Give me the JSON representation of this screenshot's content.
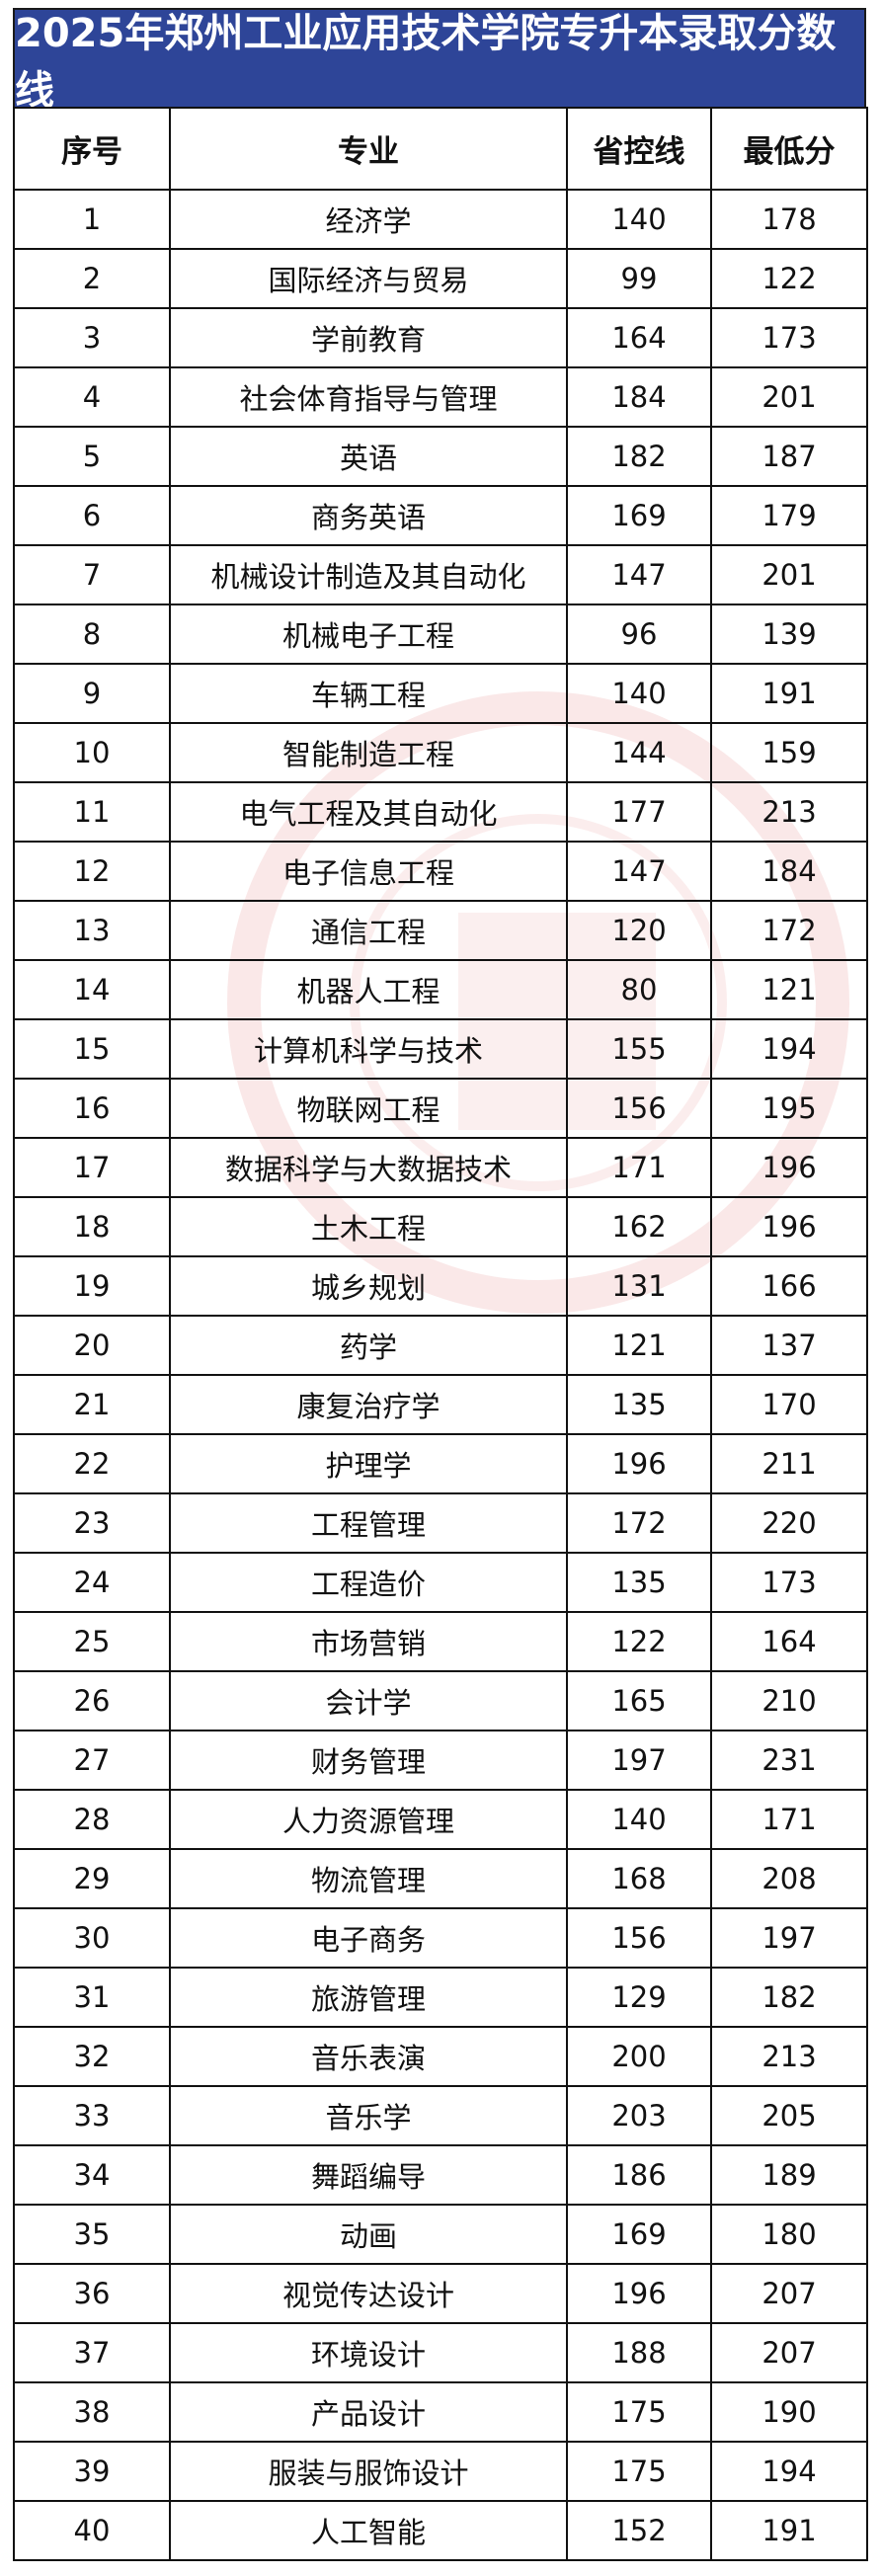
{
  "title": "2025年郑州工业应用技术学院专升本录取分数线",
  "colors": {
    "title_bg": "#2E4598",
    "watermark": "#D65050"
  },
  "headers": [
    "序号",
    "专业",
    "省控线",
    "最低分"
  ],
  "rows": [
    [
      "1",
      "经济学",
      "140",
      "178"
    ],
    [
      "2",
      "国际经济与贸易",
      "99",
      "122"
    ],
    [
      "3",
      "学前教育",
      "164",
      "173"
    ],
    [
      "4",
      "社会体育指导与管理",
      "184",
      "201"
    ],
    [
      "5",
      "英语",
      "182",
      "187"
    ],
    [
      "6",
      "商务英语",
      "169",
      "179"
    ],
    [
      "7",
      "机械设计制造及其自动化",
      "147",
      "201"
    ],
    [
      "8",
      "机械电子工程",
      "96",
      "139"
    ],
    [
      "9",
      "车辆工程",
      "140",
      "191"
    ],
    [
      "10",
      "智能制造工程",
      "144",
      "159"
    ],
    [
      "11",
      "电气工程及其自动化",
      "177",
      "213"
    ],
    [
      "12",
      "电子信息工程",
      "147",
      "184"
    ],
    [
      "13",
      "通信工程",
      "120",
      "172"
    ],
    [
      "14",
      "机器人工程",
      "80",
      "121"
    ],
    [
      "15",
      "计算机科学与技术",
      "155",
      "194"
    ],
    [
      "16",
      "物联网工程",
      "156",
      "195"
    ],
    [
      "17",
      "数据科学与大数据技术",
      "171",
      "196"
    ],
    [
      "18",
      "土木工程",
      "162",
      "196"
    ],
    [
      "19",
      "城乡规划",
      "131",
      "166"
    ],
    [
      "20",
      "药学",
      "121",
      "137"
    ],
    [
      "21",
      "康复治疗学",
      "135",
      "170"
    ],
    [
      "22",
      "护理学",
      "196",
      "211"
    ],
    [
      "23",
      "工程管理",
      "172",
      "220"
    ],
    [
      "24",
      "工程造价",
      "135",
      "173"
    ],
    [
      "25",
      "市场营销",
      "122",
      "164"
    ],
    [
      "26",
      "会计学",
      "165",
      "210"
    ],
    [
      "27",
      "财务管理",
      "197",
      "231"
    ],
    [
      "28",
      "人力资源管理",
      "140",
      "171"
    ],
    [
      "29",
      "物流管理",
      "168",
      "208"
    ],
    [
      "30",
      "电子商务",
      "156",
      "197"
    ],
    [
      "31",
      "旅游管理",
      "129",
      "182"
    ],
    [
      "32",
      "音乐表演",
      "200",
      "213"
    ],
    [
      "33",
      "音乐学",
      "203",
      "205"
    ],
    [
      "34",
      "舞蹈编导",
      "186",
      "189"
    ],
    [
      "35",
      "动画",
      "169",
      "180"
    ],
    [
      "36",
      "视觉传达设计",
      "196",
      "207"
    ],
    [
      "37",
      "环境设计",
      "188",
      "207"
    ],
    [
      "38",
      "产品设计",
      "175",
      "190"
    ],
    [
      "39",
      "服装与服饰设计",
      "175",
      "194"
    ],
    [
      "40",
      "人工智能",
      "152",
      "191"
    ]
  ]
}
